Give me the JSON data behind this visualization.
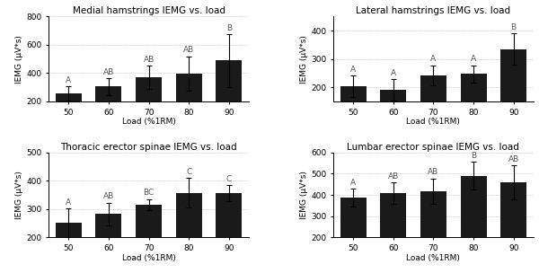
{
  "subplots": [
    {
      "title": "Medial hamstrings IEMG vs. load",
      "ylabel": "IEMG (μV*s)",
      "xlabel": "Load (%1RM)",
      "categories": [
        50,
        60,
        70,
        80,
        90
      ],
      "values": [
        255,
        305,
        370,
        398,
        488
      ],
      "errors": [
        50,
        60,
        80,
        120,
        185
      ],
      "labels": [
        "A",
        "AB",
        "AB",
        "AB",
        "B"
      ],
      "ylim": [
        200,
        800
      ],
      "yticks": [
        200,
        400,
        600,
        800
      ]
    },
    {
      "title": "Lateral hamstrings IEMG vs. load",
      "ylabel": "IEMG (μV*s)",
      "xlabel": "Load (%1RM)",
      "categories": [
        50,
        60,
        70,
        80,
        90
      ],
      "values": [
        203,
        190,
        242,
        247,
        335
      ],
      "errors": [
        38,
        38,
        35,
        30,
        55
      ],
      "labels": [
        "A",
        "A",
        "A",
        "A",
        "B"
      ],
      "ylim": [
        150,
        450
      ],
      "yticks": [
        200,
        300,
        400
      ]
    },
    {
      "title": "Thoracic erector spinae IEMG vs. load",
      "ylabel": "IEMG (μV*s)",
      "xlabel": "Load (%1RM)",
      "categories": [
        50,
        60,
        70,
        80,
        90
      ],
      "values": [
        252,
        283,
        315,
        358,
        356
      ],
      "errors": [
        50,
        40,
        20,
        52,
        28
      ],
      "labels": [
        "A",
        "AB",
        "BC",
        "C",
        "C"
      ],
      "ylim": [
        200,
        500
      ],
      "yticks": [
        200,
        300,
        400,
        500
      ]
    },
    {
      "title": "Lumbar erector spinae IEMG vs. load",
      "ylabel": "IEMG (μV*s)",
      "xlabel": "Load (%1RM)",
      "categories": [
        50,
        60,
        70,
        80,
        90
      ],
      "values": [
        388,
        410,
        418,
        490,
        460
      ],
      "errors": [
        42,
        50,
        60,
        65,
        80
      ],
      "labels": [
        "A",
        "AB",
        "AB",
        "B",
        "AB"
      ],
      "ylim": [
        200,
        600
      ],
      "yticks": [
        200,
        300,
        400,
        500,
        600
      ]
    }
  ],
  "bar_color": "#1a1a1a",
  "bar_width": 0.65,
  "grid_color": "#aaaaaa",
  "label_color": "#555555",
  "label_fontsize": 6.5,
  "title_fontsize": 7.5,
  "axis_fontsize": 6.5,
  "tick_fontsize": 6.5
}
